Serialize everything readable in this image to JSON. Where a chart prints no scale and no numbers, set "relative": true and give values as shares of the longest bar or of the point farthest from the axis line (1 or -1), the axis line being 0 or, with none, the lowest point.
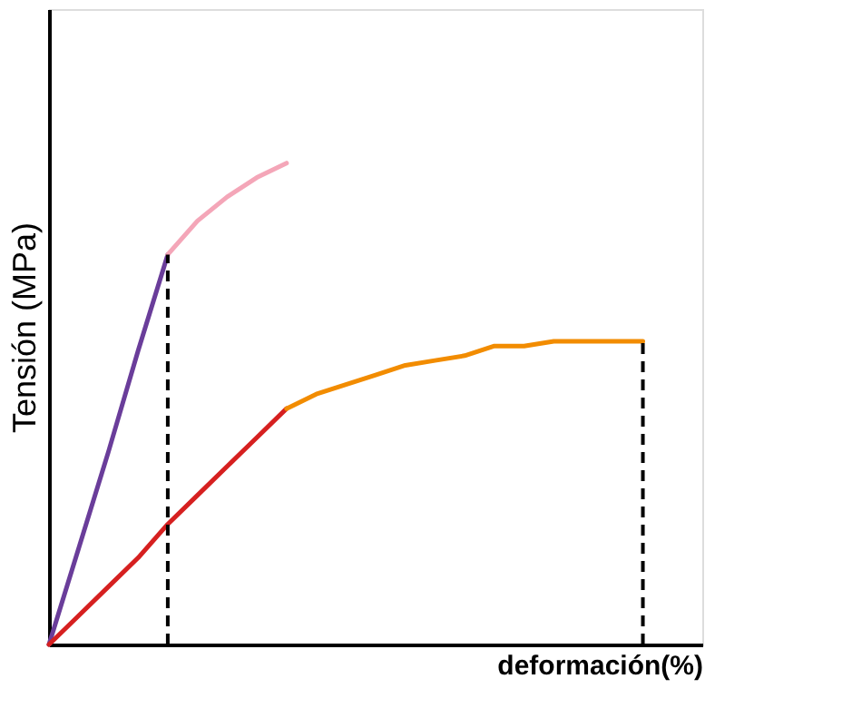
{
  "chart_data": {
    "type": "line",
    "xlabel": "deformación(%)",
    "ylabel": "Tensión (MPa)",
    "relative": true,
    "tick_labels": false,
    "grid": false,
    "marker": "none",
    "line_style": "solid",
    "categories": [
      null,
      null,
      null,
      null,
      null,
      null,
      null,
      null,
      null,
      null,
      null,
      null,
      null,
      null,
      null,
      null,
      null,
      null,
      null,
      null,
      null,
      null,
      null
    ],
    "series": [
      {
        "color": "#6a3d9a",
        "values": [
          0,
          0.2,
          0.4,
          0.61,
          0.81,
          null,
          null,
          null,
          null,
          null,
          null,
          null,
          null,
          null,
          null,
          null,
          null,
          null,
          null,
          null,
          null,
          null,
          null
        ]
      },
      {
        "color": "#f4a6b8",
        "values": [
          null,
          null,
          null,
          null,
          0.81,
          0.88,
          0.93,
          0.97,
          1.0,
          null,
          null,
          null,
          null,
          null,
          null,
          null,
          null,
          null,
          null,
          null,
          null,
          null,
          null
        ]
      },
      {
        "color": "#d62020",
        "values": [
          0,
          0.06,
          0.12,
          0.18,
          0.25,
          0.31,
          0.37,
          0.43,
          0.49,
          null,
          null,
          null,
          null,
          null,
          null,
          null,
          null,
          null,
          null,
          null,
          null,
          null,
          null
        ]
      },
      {
        "color": "#f28c00",
        "values": [
          null,
          null,
          null,
          null,
          null,
          null,
          null,
          null,
          0.49,
          0.52,
          0.54,
          0.56,
          0.58,
          0.59,
          0.6,
          0.62,
          0.62,
          0.63,
          0.63,
          0.63,
          0.63,
          null,
          null
        ]
      }
    ]
  }
}
